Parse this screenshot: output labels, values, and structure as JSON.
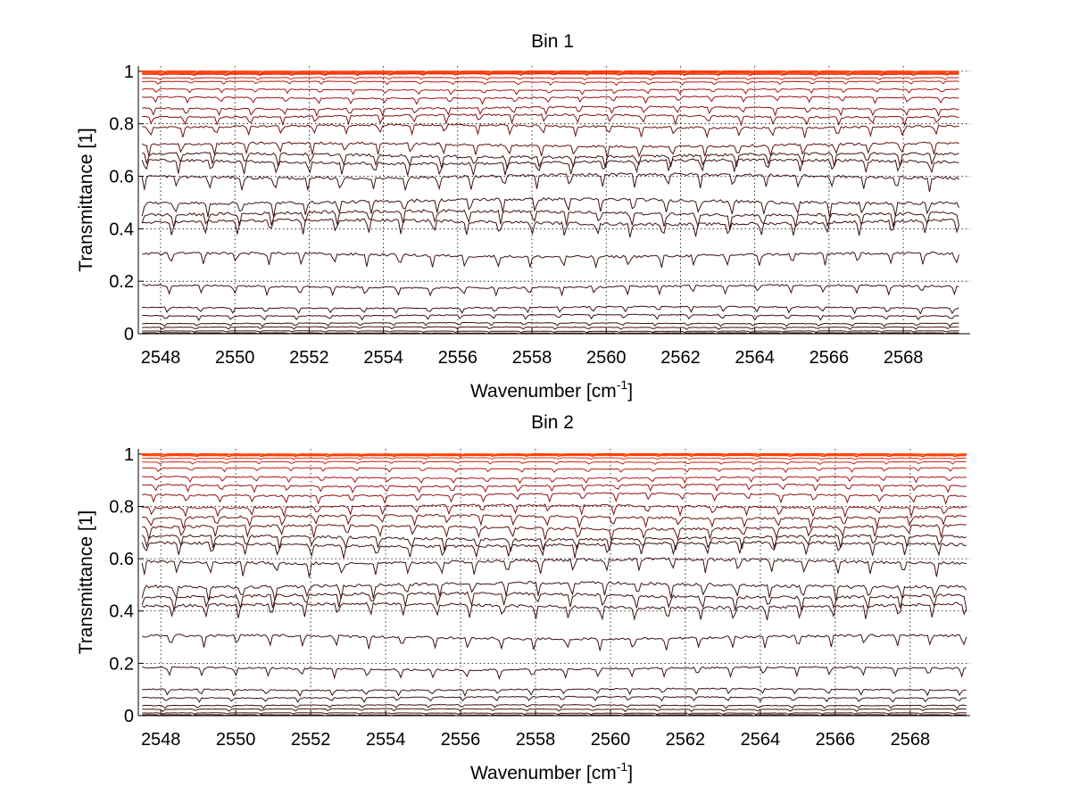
{
  "chart_data": [
    {
      "type": "line",
      "title": "Bin 1",
      "xlabel": "Wavenumber [cm",
      "xlabel_superscript": "-1",
      "xlabel_suffix": "]",
      "ylabel": "Transmittance [1]",
      "xlim": [
        2547.4,
        2569.8
      ],
      "ylim": [
        0,
        1.02
      ],
      "x_range": [
        2547.5,
        2569.5
      ],
      "xticks": [
        2548,
        2550,
        2552,
        2554,
        2556,
        2558,
        2560,
        2562,
        2564,
        2566,
        2568
      ],
      "yticks": [
        0,
        0.2,
        0.4,
        0.6,
        0.8,
        1
      ],
      "ytick_labels": [
        "0",
        "0.2",
        "0.4",
        "0.6",
        "0.8",
        "1"
      ],
      "grid": true,
      "series_levels": [
        1.0,
        0.995,
        0.99,
        0.975,
        0.96,
        0.93,
        0.9,
        0.86,
        0.83,
        0.79,
        0.72,
        0.68,
        0.655,
        0.6,
        0.505,
        0.46,
        0.425,
        0.3,
        0.18,
        0.1,
        0.07,
        0.04,
        0.025,
        0.01,
        0.003
      ],
      "colors": [
        "#ff3300",
        "#ff4400",
        "#e83010",
        "#d02010",
        "#c01a10",
        "#b01510",
        "#a01010",
        "#901010",
        "#801010",
        "#701010",
        "#601010",
        "#401010"
      ]
    },
    {
      "type": "line",
      "title": "Bin 2",
      "xlabel": "Wavenumber [cm",
      "xlabel_superscript": "-1",
      "xlabel_suffix": "]",
      "ylabel": "Transmittance [1]",
      "xlim": [
        2547.4,
        2569.6
      ],
      "ylim": [
        0,
        1.02
      ],
      "x_range": [
        2547.5,
        2569.5
      ],
      "xticks": [
        2548,
        2550,
        2552,
        2554,
        2556,
        2558,
        2560,
        2562,
        2564,
        2566,
        2568
      ],
      "yticks": [
        0,
        0.2,
        0.4,
        0.6,
        0.8,
        1
      ],
      "ytick_labels": [
        "0",
        "0.2",
        "0.4",
        "0.6",
        "0.8",
        "1"
      ],
      "grid": true,
      "series_levels": [
        1.0,
        0.995,
        0.985,
        0.97,
        0.945,
        0.91,
        0.88,
        0.845,
        0.8,
        0.76,
        0.72,
        0.68,
        0.655,
        0.59,
        0.5,
        0.46,
        0.42,
        0.3,
        0.18,
        0.1,
        0.07,
        0.04,
        0.025,
        0.01,
        0.003
      ],
      "colors": [
        "#ff3300",
        "#ff4400",
        "#e83010",
        "#d02010",
        "#c01a10",
        "#b01510",
        "#a01010",
        "#901010",
        "#801010",
        "#701010",
        "#601010",
        "#401010"
      ]
    }
  ]
}
